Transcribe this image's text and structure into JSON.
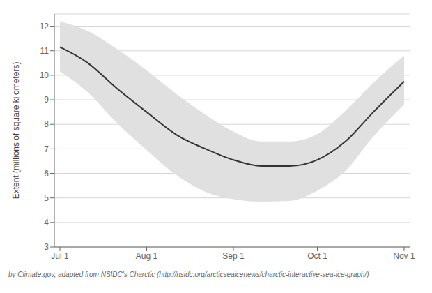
{
  "chart_data": {
    "type": "line",
    "ylabel": "Extent (millions of square kilometers)",
    "caption": "by Climate.gov, adapted from NSIDC's Charctic (http://nsidc.org/arcticseaicenews/charctic-interactive-sea-ice-graph/)",
    "x": [
      0,
      10,
      20,
      31,
      42,
      52,
      62,
      72,
      82,
      92,
      102,
      112,
      123
    ],
    "series": [
      {
        "color": "#333333",
        "values": [
          11.15,
          10.5,
          9.5,
          8.5,
          7.55,
          7.0,
          6.55,
          6.3,
          6.3,
          6.55,
          7.3,
          8.5,
          9.75
        ]
      }
    ],
    "band": {
      "color": "#e0e0e0",
      "upper": [
        12.2,
        11.8,
        11.1,
        10.2,
        9.2,
        8.4,
        7.7,
        7.3,
        7.3,
        7.6,
        8.55,
        9.7,
        10.8
      ],
      "lower": [
        10.15,
        9.3,
        8.1,
        6.95,
        5.9,
        5.25,
        4.95,
        4.85,
        4.88,
        5.3,
        6.1,
        7.5,
        8.8
      ]
    },
    "xlim": [
      -2,
      125
    ],
    "xticks": [
      {
        "value": 0,
        "label": "Jul 1"
      },
      {
        "value": 31,
        "label": "Aug 1"
      },
      {
        "value": 62,
        "label": "Sep 1"
      },
      {
        "value": 92,
        "label": "Oct 1"
      },
      {
        "value": 123,
        "label": "Nov 1"
      }
    ],
    "ylim": [
      3,
      12.5
    ],
    "yticks": [
      3,
      4,
      5,
      6,
      7,
      8,
      9,
      10,
      11,
      12
    ],
    "grid": true
  }
}
